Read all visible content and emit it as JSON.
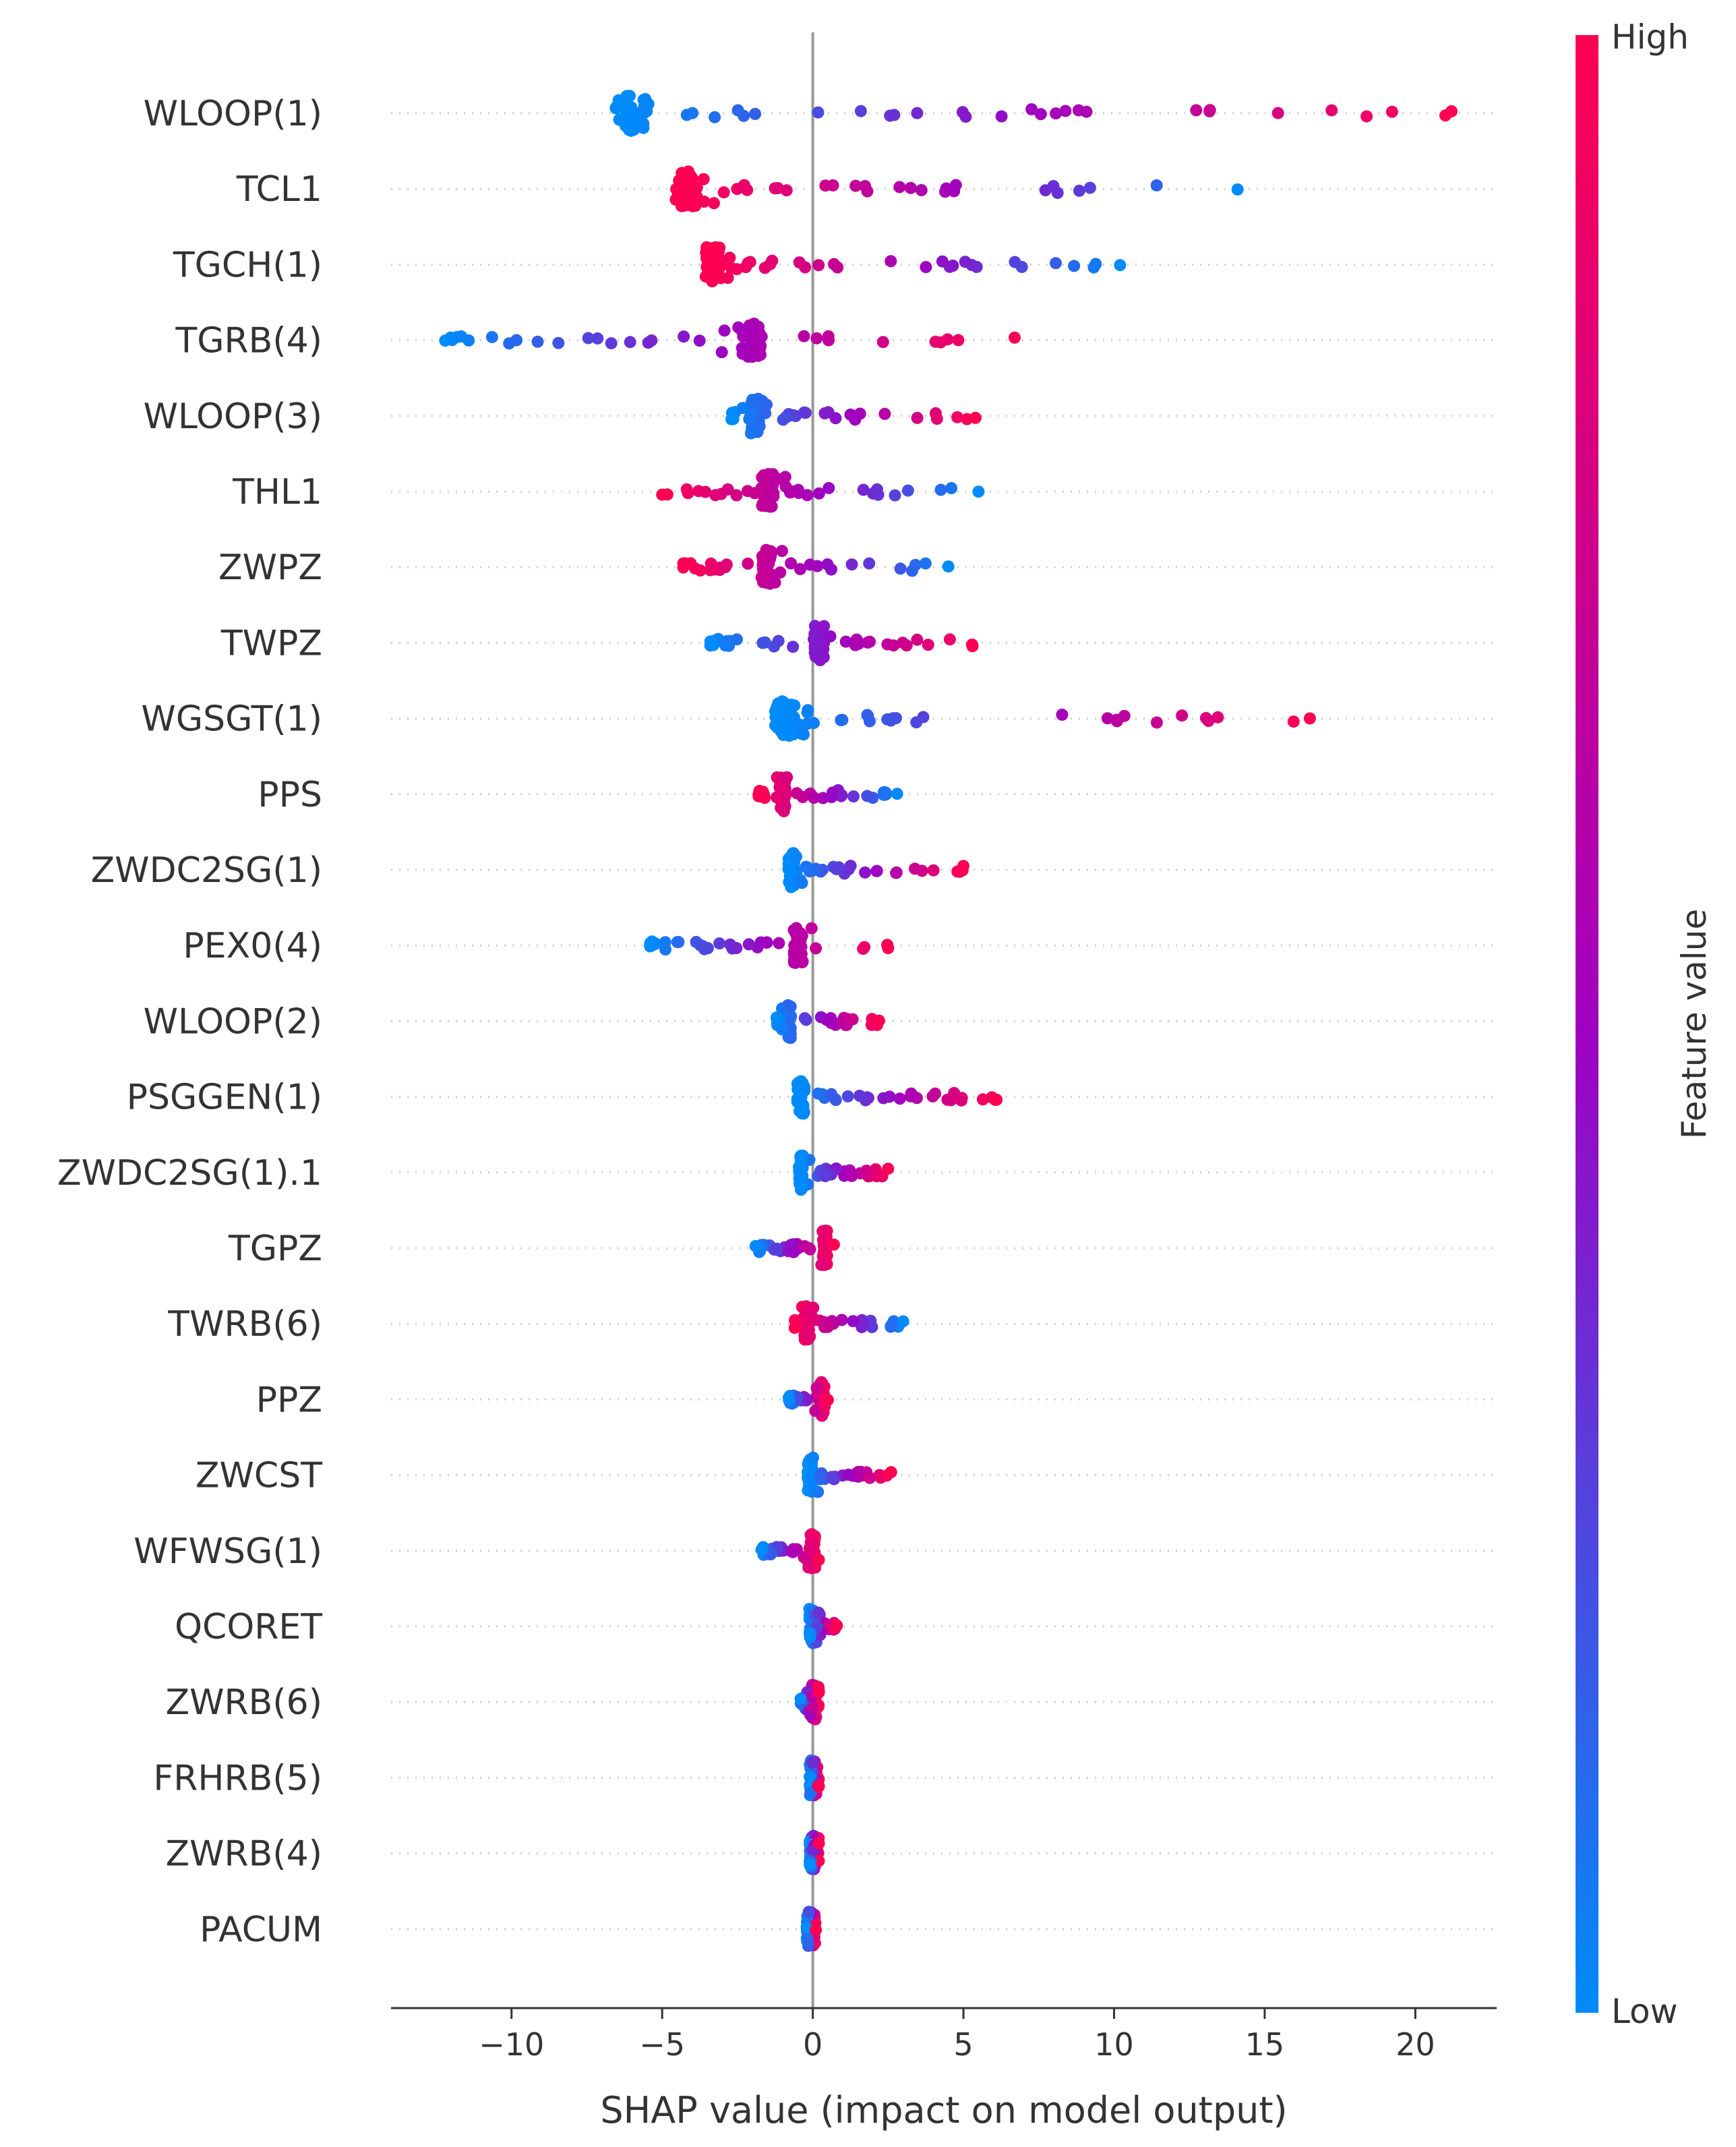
{
  "chart_data": {
    "type": "scatter",
    "subtype": "shap-beeswarm",
    "xlabel": "SHAP value (impact on model output)",
    "xlim": [
      -14,
      22.7
    ],
    "xticks": [
      -10,
      -5,
      0,
      5,
      10,
      15,
      20
    ],
    "xtick_labels": [
      "−10",
      "−5",
      "0",
      "5",
      "10",
      "15",
      "20"
    ],
    "colorbar": {
      "label": "Feature value",
      "high_label": "High",
      "low_label": "Low",
      "low_color": "#008bfb",
      "mid_color": "#a100c0",
      "high_color": "#ff0052"
    },
    "features": [
      {
        "name": "WLOOP(1)",
        "min": -6.1,
        "max": 21.2,
        "dense_at": -6.0,
        "color_dir": "pos"
      },
      {
        "name": "TCL1",
        "min": -4.2,
        "max": 14.1,
        "dense_at": -4.2,
        "color_dir": "neg"
      },
      {
        "name": "TGCH(1)",
        "min": -3.3,
        "max": 10.2,
        "dense_at": -3.3,
        "color_dir": "neg"
      },
      {
        "name": "TGRB(4)",
        "min": -12.2,
        "max": 6.7,
        "dense_at": -2.1,
        "color_dir": "pos"
      },
      {
        "name": "WLOOP(3)",
        "min": -2.7,
        "max": 5.4,
        "dense_at": -1.9,
        "color_dir": "pos"
      },
      {
        "name": "THL1",
        "min": -5.0,
        "max": 5.5,
        "dense_at": -1.5,
        "color_dir": "neg"
      },
      {
        "name": "ZWPZ",
        "min": -4.3,
        "max": 4.5,
        "dense_at": -1.5,
        "color_dir": "neg"
      },
      {
        "name": "TWPZ",
        "min": -3.4,
        "max": 5.3,
        "dense_at": 0.2,
        "color_dir": "pos"
      },
      {
        "name": "WGSGT(1)",
        "min": -0.9,
        "max": 16.5,
        "dense_at": -0.9,
        "color_dir": "pos"
      },
      {
        "name": "PPS",
        "min": -1.8,
        "max": 2.8,
        "dense_at": -1.0,
        "color_dir": "neg"
      },
      {
        "name": "ZWDC2SG(1)",
        "min": -0.7,
        "max": 5.0,
        "dense_at": -0.7,
        "color_dir": "pos"
      },
      {
        "name": "PEX0(4)",
        "min": -5.4,
        "max": 2.5,
        "dense_at": -0.5,
        "color_dir": "pos"
      },
      {
        "name": "WLOOP(2)",
        "min": -1.2,
        "max": 2.2,
        "dense_at": -0.8,
        "color_dir": "pos"
      },
      {
        "name": "PSGGEN(1)",
        "min": -0.4,
        "max": 6.1,
        "dense_at": -0.4,
        "color_dir": "pos"
      },
      {
        "name": "ZWDC2SG(1).1",
        "min": -0.4,
        "max": 2.5,
        "dense_at": -0.4,
        "color_dir": "pos"
      },
      {
        "name": "TGPZ",
        "min": -1.9,
        "max": 0.7,
        "dense_at": 0.4,
        "color_dir": "pos"
      },
      {
        "name": "TWRB(6)",
        "min": -0.6,
        "max": 3.0,
        "dense_at": -0.2,
        "color_dir": "neg"
      },
      {
        "name": "PPZ",
        "min": -0.8,
        "max": 0.5,
        "dense_at": 0.3,
        "color_dir": "pos"
      },
      {
        "name": "ZWCST",
        "min": -0.1,
        "max": 2.6,
        "dense_at": -0.1,
        "color_dir": "pos"
      },
      {
        "name": "WFWSG(1)",
        "min": -1.7,
        "max": 0.2,
        "dense_at": 0.0,
        "color_dir": "pos"
      },
      {
        "name": "QCORET",
        "min": -0.1,
        "max": 0.8,
        "dense_at": -0.05,
        "color_dir": "pos"
      },
      {
        "name": "ZWRB(6)",
        "min": -0.4,
        "max": 0.2,
        "dense_at": 0.05,
        "color_dir": "pos"
      },
      {
        "name": "FRHRB(5)",
        "min": -0.1,
        "max": 0.2,
        "dense_at": 0.0,
        "color_dir": "pos"
      },
      {
        "name": "ZWRB(4)",
        "min": -0.1,
        "max": 0.2,
        "dense_at": 0.0,
        "color_dir": "pos"
      },
      {
        "name": "PACUM",
        "min": -0.2,
        "max": 0.1,
        "dense_at": 0.0,
        "color_dir": "pos"
      }
    ]
  }
}
